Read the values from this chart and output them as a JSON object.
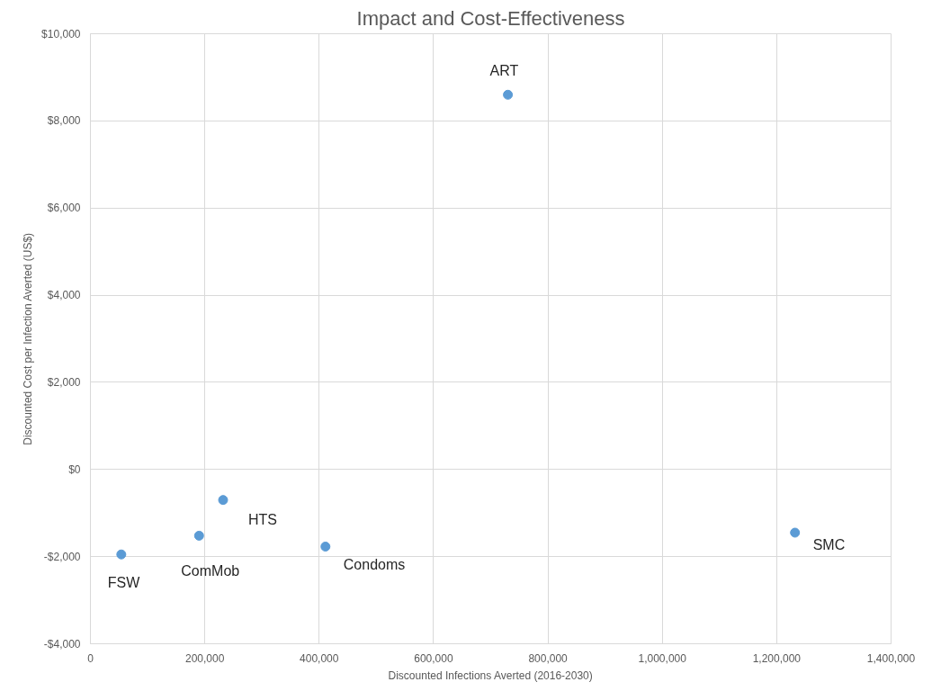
{
  "chart_data": {
    "type": "scatter",
    "title": "Impact and Cost-Effectiveness",
    "xlabel": "Discounted Infections Averted (2016-2030)",
    "ylabel": "Discounted Cost per Infection Averted (US$)",
    "x": [
      54000,
      190000,
      232000,
      411000,
      730000,
      1232000
    ],
    "series": [
      {
        "color": "#5b9bd5",
        "values": [
          -1950,
          -1520,
          -700,
          -1770,
          8600,
          -1450
        ]
      }
    ],
    "annotations": [
      {
        "text": "FSW",
        "x": 54000,
        "y": -1950
      },
      {
        "text": "ComMob",
        "x": 190000,
        "y": -1520
      },
      {
        "text": "HTS",
        "x": 232000,
        "y": -700
      },
      {
        "text": "Condoms",
        "x": 411000,
        "y": -1770
      },
      {
        "text": "ART",
        "x": 730000,
        "y": 8600
      },
      {
        "text": "SMC",
        "x": 1232000,
        "y": -1450
      }
    ],
    "xlim": [
      0,
      1400000
    ],
    "ylim": [
      -4000,
      10000
    ],
    "xticks": [
      0,
      {
        "value": 200000,
        "label": "200,000"
      },
      {
        "value": 400000,
        "label": "400,000"
      },
      {
        "value": 600000,
        "label": "600,000"
      },
      {
        "value": 800000,
        "label": "800,000"
      },
      {
        "value": 1000000,
        "label": "1,000,000"
      },
      {
        "value": 1200000,
        "label": "1,200,000"
      },
      {
        "value": 1400000,
        "label": "1,400,000"
      }
    ],
    "yticks": [
      {
        "value": -4000,
        "label": "-$4,000"
      },
      {
        "value": -2000,
        "label": "-$2,000"
      },
      {
        "value": 0,
        "label": "$0"
      },
      {
        "value": 2000,
        "label": "$2,000"
      },
      {
        "value": 4000,
        "label": "$4,000"
      },
      {
        "value": 6000,
        "label": "$6,000"
      },
      {
        "value": 8000,
        "label": "$8,000"
      },
      {
        "value": 10000,
        "label": "$10,000"
      }
    ],
    "grid": true,
    "marker": "circle"
  }
}
